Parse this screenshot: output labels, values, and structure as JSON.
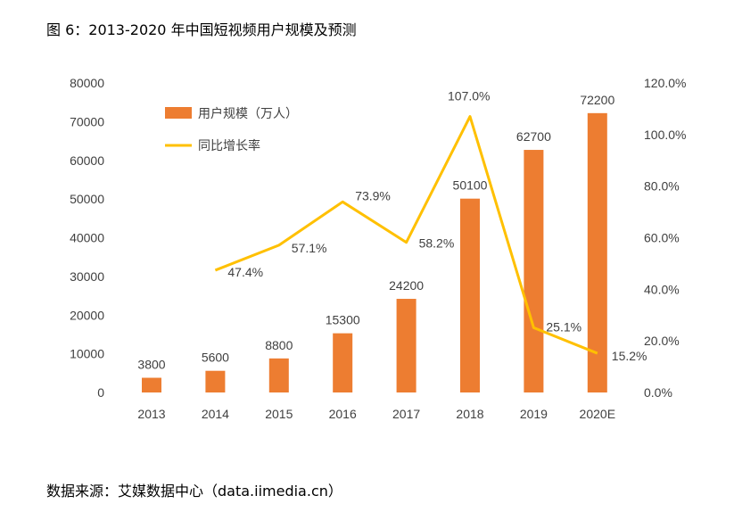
{
  "title": "图 6：2013-2020 年中国短视频用户规模及预测",
  "source": "数据来源：艾媒数据中心（data.iimedia.cn）",
  "chart_data": {
    "type": "bar+line",
    "categories": [
      "2013",
      "2014",
      "2015",
      "2016",
      "2017",
      "2018",
      "2019",
      "2020E"
    ],
    "series": [
      {
        "name": "用户规模（万人）",
        "type": "bar",
        "axis": "left",
        "color": "#ED7D31",
        "values": [
          3800,
          5600,
          8800,
          15300,
          24200,
          50100,
          62700,
          72200
        ],
        "labels": [
          "3800",
          "5600",
          "8800",
          "15300",
          "24200",
          "50100",
          "62700",
          "72200"
        ]
      },
      {
        "name": "同比增长率",
        "type": "line",
        "axis": "right",
        "color": "#FFC000",
        "values": [
          null,
          47.4,
          57.1,
          73.9,
          58.2,
          107.0,
          25.1,
          15.2
        ],
        "labels": [
          "",
          "47.4%",
          "57.1%",
          "73.9%",
          "58.2%",
          "107.0%",
          "25.1%",
          "15.2%"
        ]
      }
    ],
    "y_left": {
      "range": [
        0,
        80000
      ],
      "ticks": [
        "0",
        "10000",
        "20000",
        "30000",
        "40000",
        "50000",
        "60000",
        "70000",
        "80000"
      ]
    },
    "y_right": {
      "range": [
        0,
        120
      ],
      "ticks": [
        "0.0%",
        "20.0%",
        "40.0%",
        "60.0%",
        "80.0%",
        "100.0%",
        "120.0%"
      ]
    },
    "grid": false,
    "legend": "top-left"
  }
}
